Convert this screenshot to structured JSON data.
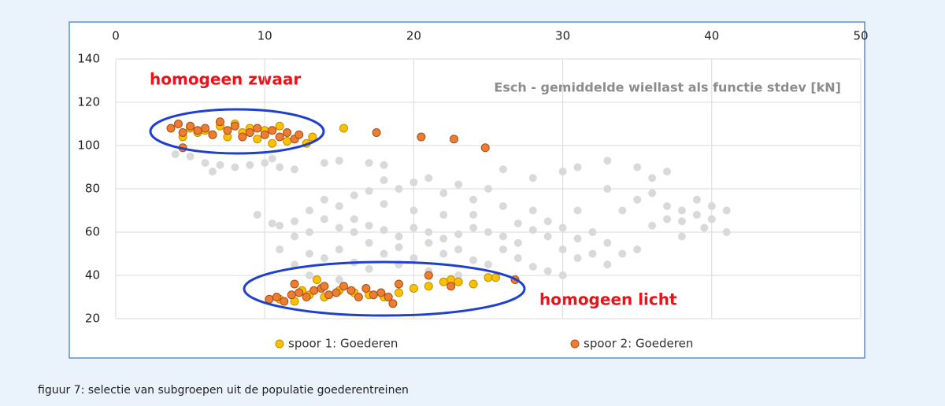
{
  "chart_data": {
    "type": "scatter",
    "title": "Esch - gemiddelde wiellast als functie stdev [kN]",
    "annotations": [
      "homogeen zwaar",
      "homogeen licht"
    ],
    "xlim": [
      0,
      50
    ],
    "xticks": [
      0,
      10,
      20,
      30,
      40,
      50
    ],
    "ylim": [
      20,
      140
    ],
    "yticks": [
      20,
      40,
      60,
      80,
      100,
      120,
      140
    ],
    "grid": true,
    "legend": "bottom",
    "series": [
      {
        "color": "#d9d9d9",
        "x": [
          4,
          5,
          6,
          6.5,
          7,
          8,
          9,
          10,
          11,
          12,
          10.5,
          14,
          15,
          17,
          18,
          9.5,
          10.5,
          11,
          12,
          13,
          14,
          15,
          16,
          17,
          18,
          19,
          20,
          21,
          22,
          23,
          24,
          25,
          26,
          27,
          28,
          29,
          30,
          31,
          32,
          33,
          34,
          35,
          36,
          37,
          38,
          39,
          40,
          41,
          39.5,
          38,
          36,
          37,
          35,
          33,
          31,
          30,
          28,
          26,
          25,
          24,
          23,
          22,
          21,
          20,
          19,
          18,
          17,
          16,
          15,
          14,
          13,
          12,
          13,
          14,
          15,
          16,
          17,
          18,
          19,
          20,
          21,
          22,
          23,
          24,
          25,
          26,
          27,
          28,
          29,
          30,
          31,
          32,
          33,
          34,
          35,
          36,
          37,
          38,
          39,
          40,
          41,
          13,
          15,
          17,
          19,
          21,
          23,
          27,
          29,
          31,
          33,
          20,
          22,
          18,
          16,
          24,
          26,
          28,
          12,
          11,
          30
        ],
        "values": [
          96,
          95,
          92,
          88,
          91,
          90,
          91,
          92,
          90,
          89,
          94,
          92,
          93,
          92,
          91,
          68,
          64,
          63,
          65,
          60,
          66,
          62,
          60,
          63,
          61,
          58,
          62,
          60,
          57,
          59,
          62,
          60,
          58,
          64,
          61,
          58,
          62,
          57,
          60,
          55,
          50,
          52,
          63,
          66,
          70,
          68,
          72,
          70,
          62,
          58,
          85,
          88,
          90,
          93,
          90,
          88,
          85,
          89,
          80,
          75,
          82,
          78,
          85,
          83,
          80,
          84,
          79,
          77,
          72,
          75,
          70,
          45,
          50,
          48,
          52,
          46,
          55,
          50,
          53,
          48,
          55,
          50,
          52,
          47,
          45,
          52,
          48,
          44,
          42,
          40,
          48,
          50,
          45,
          70,
          75,
          78,
          72,
          65,
          75,
          66,
          60,
          40,
          38,
          43,
          45,
          42,
          40,
          55,
          65,
          70,
          80,
          70,
          68,
          73,
          66,
          68,
          72,
          70,
          58,
          52,
          52
        ]
      },
      {
        "name": "spoor 1: Goederen",
        "color": "#ffc000",
        "x": [
          4.5,
          5,
          5.5,
          6,
          6.5,
          7,
          7.5,
          8,
          8.5,
          9,
          9.5,
          10,
          10.5,
          11,
          11.5,
          12,
          12.8,
          13.2,
          15.3,
          11,
          12,
          13,
          14,
          15,
          16,
          17,
          18,
          19,
          20,
          21,
          22,
          22.5,
          23,
          24,
          25,
          25.5,
          13.5,
          12.5
        ],
        "values": [
          104,
          108,
          106,
          107,
          105,
          109,
          104,
          110,
          106,
          108,
          103,
          107,
          101,
          109,
          102,
          103,
          101,
          104,
          108,
          29,
          28,
          31,
          30,
          33,
          32,
          31,
          30,
          32,
          34,
          35,
          37,
          38,
          37,
          36,
          39,
          39,
          38,
          33
        ]
      },
      {
        "name": "spoor 2: Goederen",
        "color": "#ed7d31",
        "x": [
          3.7,
          4.2,
          4.5,
          5,
          5.5,
          6,
          6.5,
          7,
          7.5,
          8,
          8.5,
          9,
          9.5,
          10,
          10.5,
          11,
          11.5,
          12,
          12.3,
          4.5,
          17.5,
          20.5,
          22.7,
          24.8,
          10.3,
          10.8,
          11.3,
          11.8,
          12.3,
          12.8,
          13.3,
          13.8,
          14.3,
          14.8,
          15.3,
          15.8,
          16.3,
          16.8,
          17.3,
          17.8,
          18.3,
          18.6,
          19,
          21,
          22.5,
          26.8,
          12,
          14
        ],
        "values": [
          108,
          110,
          106,
          109,
          107,
          108,
          105,
          111,
          107,
          109,
          104,
          106,
          108,
          105,
          107,
          104,
          106,
          103,
          105,
          99,
          106,
          104,
          103,
          99,
          29,
          30,
          28,
          31,
          32,
          30,
          33,
          34,
          31,
          32,
          35,
          33,
          30,
          34,
          31,
          32,
          30,
          27,
          36,
          40,
          35,
          38,
          36,
          35
        ]
      }
    ]
  },
  "caption": "figuur 7: selectie van subgroepen uit de populatie goederentreinen"
}
